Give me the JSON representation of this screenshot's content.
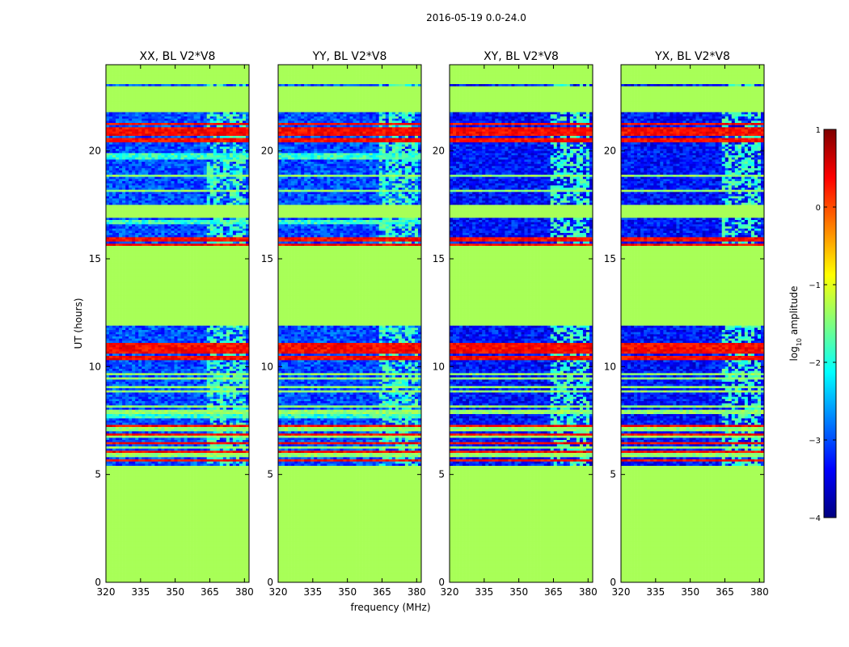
{
  "chart_data": {
    "type": "heatmap",
    "suptitle": "2016-05-19 0.0-24.0",
    "xlabel": "frequency (MHz)",
    "ylabel": "UT (hours)",
    "xlim": [
      320,
      382
    ],
    "ylim": [
      0,
      24
    ],
    "xticks": [
      320,
      335,
      350,
      365,
      380
    ],
    "yticks": [
      0,
      5,
      10,
      15,
      20
    ],
    "panels": [
      {
        "title": "XX, BL V2*V8",
        "pol": "XX"
      },
      {
        "title": "YY, BL V2*V8",
        "pol": "YY"
      },
      {
        "title": "XY, BL V2*V8",
        "pol": "XY"
      },
      {
        "title": "YX, BL V2*V8",
        "pol": "YX"
      }
    ],
    "flagged_ut_ranges": [
      [
        0,
        5.4
      ],
      [
        11.9,
        15.6
      ],
      [
        21.8,
        23.0
      ],
      [
        23.1,
        24.0
      ],
      [
        16.9,
        17.5
      ]
    ],
    "rfi_band_mhz": [
      363,
      381
    ],
    "colorbar": {
      "label": "log10 amplitude",
      "label_main": "log",
      "label_sub": "10",
      "label_rest": " amplitude",
      "vmin": -4,
      "vmax": 1,
      "ticks": [
        -4,
        -3,
        -2,
        -1,
        0,
        1
      ],
      "colormap": "jet",
      "colors": [
        "#00007f",
        "#0000ff",
        "#007fff",
        "#00ffff",
        "#7fff7f",
        "#ffff00",
        "#ff7f00",
        "#ff0000",
        "#7f0000"
      ]
    }
  }
}
